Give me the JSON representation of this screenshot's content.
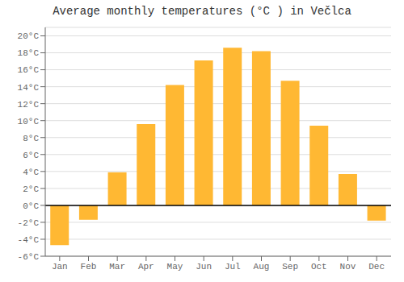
{
  "chart_data": {
    "type": "bar",
    "title": "Average monthly temperatures (°C ) in Večlca",
    "categories": [
      "Jan",
      "Feb",
      "Mar",
      "Apr",
      "May",
      "Jun",
      "Jul",
      "Aug",
      "Sep",
      "Oct",
      "Nov",
      "Dec"
    ],
    "values": [
      -4.7,
      -1.7,
      3.9,
      9.6,
      14.2,
      17.1,
      18.6,
      18.2,
      14.7,
      9.4,
      3.7,
      -1.8
    ],
    "color": "#FFB833",
    "ylim": [
      -6,
      21
    ],
    "yticks": [
      {
        "value": -6,
        "label": "-6°C"
      },
      {
        "value": -4,
        "label": "-4°C"
      },
      {
        "value": -2,
        "label": "-2°C"
      },
      {
        "value": 0,
        "label": "0°C"
      },
      {
        "value": 2,
        "label": "2°C"
      },
      {
        "value": 4,
        "label": "4°C"
      },
      {
        "value": 6,
        "label": "6°C"
      },
      {
        "value": 8,
        "label": "8°C"
      },
      {
        "value": 10,
        "label": "10°C"
      },
      {
        "value": 12,
        "label": "12°C"
      },
      {
        "value": 14,
        "label": "14°C"
      },
      {
        "value": 16,
        "label": "16°C"
      },
      {
        "value": 18,
        "label": "18°C"
      },
      {
        "value": 20,
        "label": "20°C"
      }
    ],
    "grid": true
  }
}
